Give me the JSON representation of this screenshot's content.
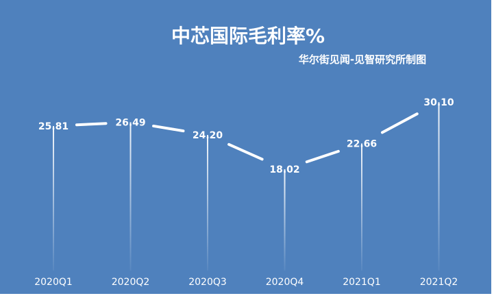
{
  "chart_data": {
    "type": "line",
    "title": "中芯国际毛利率%",
    "subtitle": "华尔街见闻-见智研究所制图",
    "categories": [
      "2020Q1",
      "2020Q2",
      "2020Q3",
      "2020Q4",
      "2021Q1",
      "2021Q2"
    ],
    "series": [
      {
        "values": [
          25.81,
          26.49,
          24.2,
          18.02,
          22.66,
          30.1
        ]
      }
    ],
    "data_labels": [
      "25.81",
      "26.49",
      "24.20",
      "18.02",
      "22.66",
      "30.10"
    ],
    "xlabel": "",
    "ylabel": "",
    "ylim": [
      0,
      38.2
    ],
    "grid": false,
    "legend": "none",
    "colors": {
      "background": "#4f81bd",
      "line": "#ffffff",
      "text": "#ffffff",
      "drop_line": "#ffffff"
    }
  }
}
